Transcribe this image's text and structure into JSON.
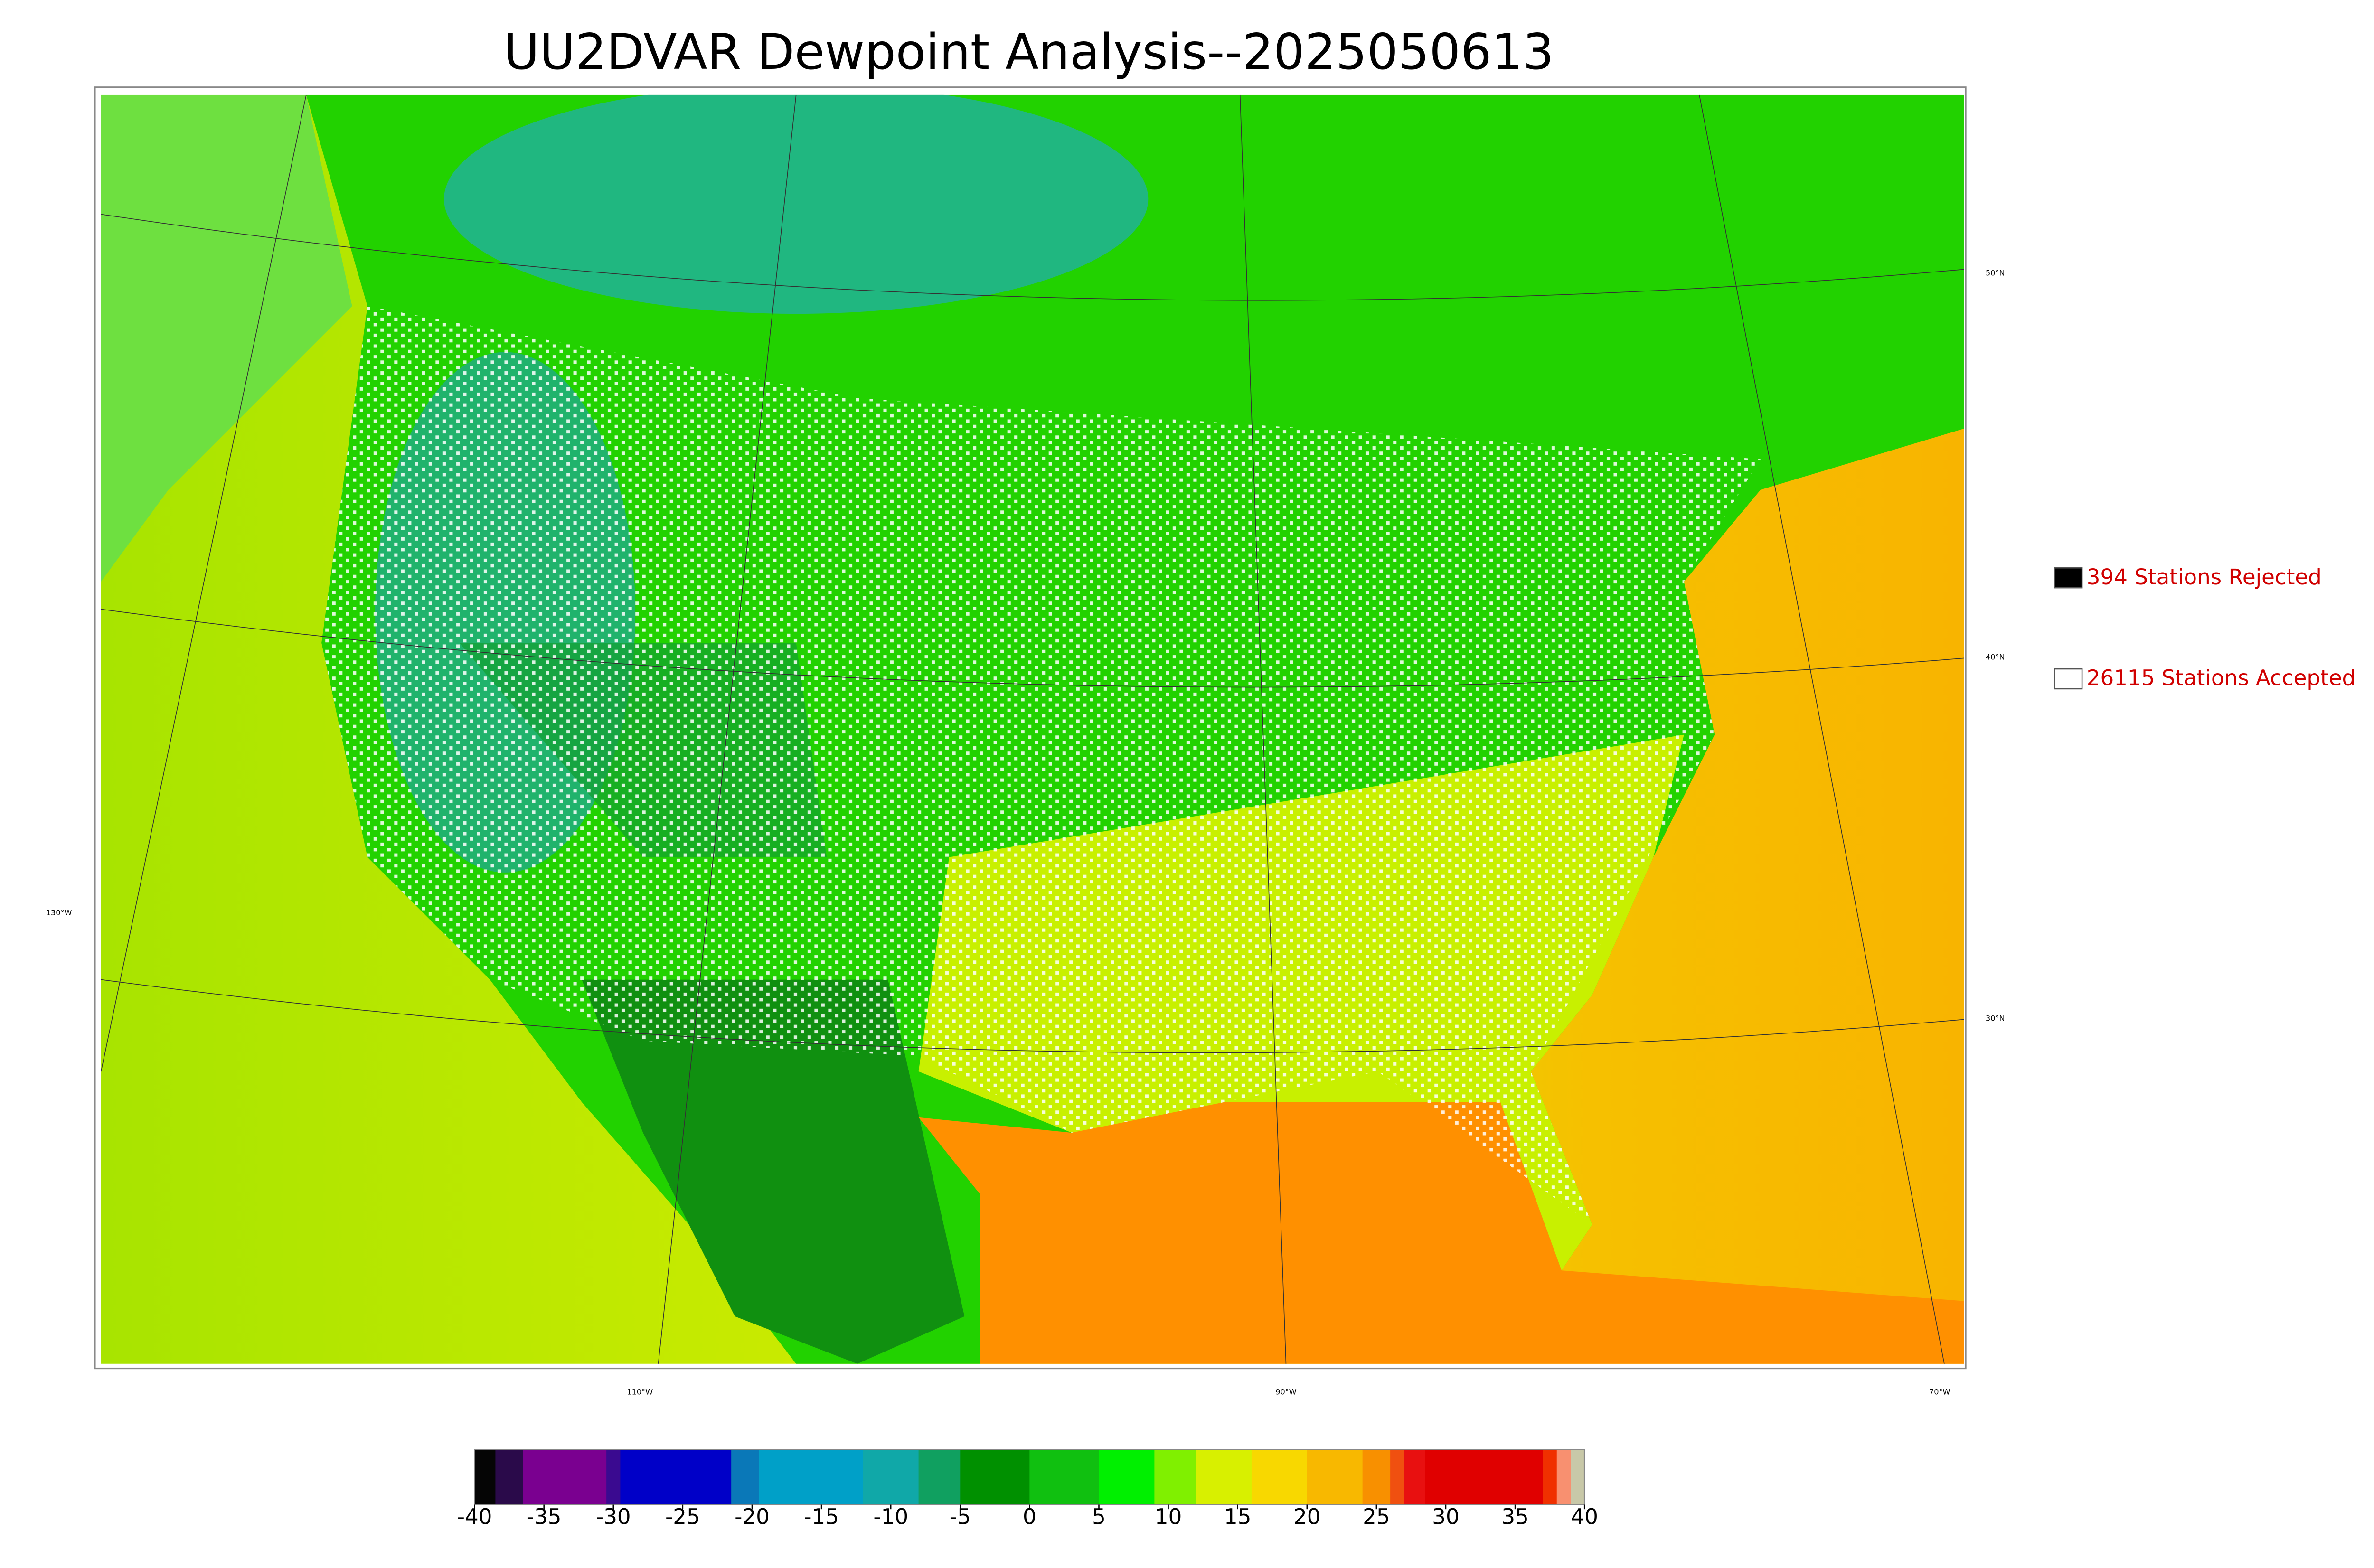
{
  "title": "UU2DVAR Dewpoint Analysis--2025050613",
  "legend": [
    {
      "label": "394 Stations Rejected",
      "color": "#000000"
    },
    {
      "label": "26115 Stations Accepted",
      "color": "#ffffff"
    }
  ],
  "graticule": {
    "lat_labels": [
      "50°N",
      "40°N",
      "30°N"
    ],
    "lon_labels": [
      "130°W",
      "110°W",
      "90°W",
      "70°W"
    ]
  },
  "colorbar": {
    "lim": [
      -40,
      40
    ],
    "ticks": [
      -40,
      -35,
      -30,
      -25,
      -20,
      -15,
      -10,
      -5,
      0,
      5,
      10,
      15,
      20,
      25,
      30,
      35,
      40
    ],
    "segments": [
      {
        "from": -40,
        "to": -38.5,
        "color": "#050505"
      },
      {
        "from": -38.5,
        "to": -36.5,
        "color": "#2a0a4a"
      },
      {
        "from": -36.5,
        "to": -30.5,
        "color": "#7a0090"
      },
      {
        "from": -30.5,
        "to": -29.5,
        "color": "#3a0a90"
      },
      {
        "from": -29.5,
        "to": -21.5,
        "color": "#0000c8"
      },
      {
        "from": -21.5,
        "to": -19.5,
        "color": "#0a78b8"
      },
      {
        "from": -19.5,
        "to": -12,
        "color": "#00a0c8"
      },
      {
        "from": -12,
        "to": -8,
        "color": "#10a8a8"
      },
      {
        "from": -8,
        "to": -5,
        "color": "#10a060"
      },
      {
        "from": -5,
        "to": 0,
        "color": "#009000"
      },
      {
        "from": 0,
        "to": 5,
        "color": "#10c010"
      },
      {
        "from": 5,
        "to": 9,
        "color": "#00f000"
      },
      {
        "from": 9,
        "to": 12,
        "color": "#80f000"
      },
      {
        "from": 12,
        "to": 16,
        "color": "#d8f000"
      },
      {
        "from": 16,
        "to": 20,
        "color": "#f8d800"
      },
      {
        "from": 20,
        "to": 24,
        "color": "#f8b800"
      },
      {
        "from": 24,
        "to": 26,
        "color": "#f89000"
      },
      {
        "from": 26,
        "to": 27,
        "color": "#f05010"
      },
      {
        "from": 27,
        "to": 28.5,
        "color": "#e81010"
      },
      {
        "from": 28.5,
        "to": 37,
        "color": "#e00000"
      },
      {
        "from": 37,
        "to": 38,
        "color": "#f03000"
      },
      {
        "from": 38,
        "to": 39,
        "color": "#f89070"
      },
      {
        "from": 39,
        "to": 40,
        "color": "#c8c8a8"
      }
    ]
  }
}
